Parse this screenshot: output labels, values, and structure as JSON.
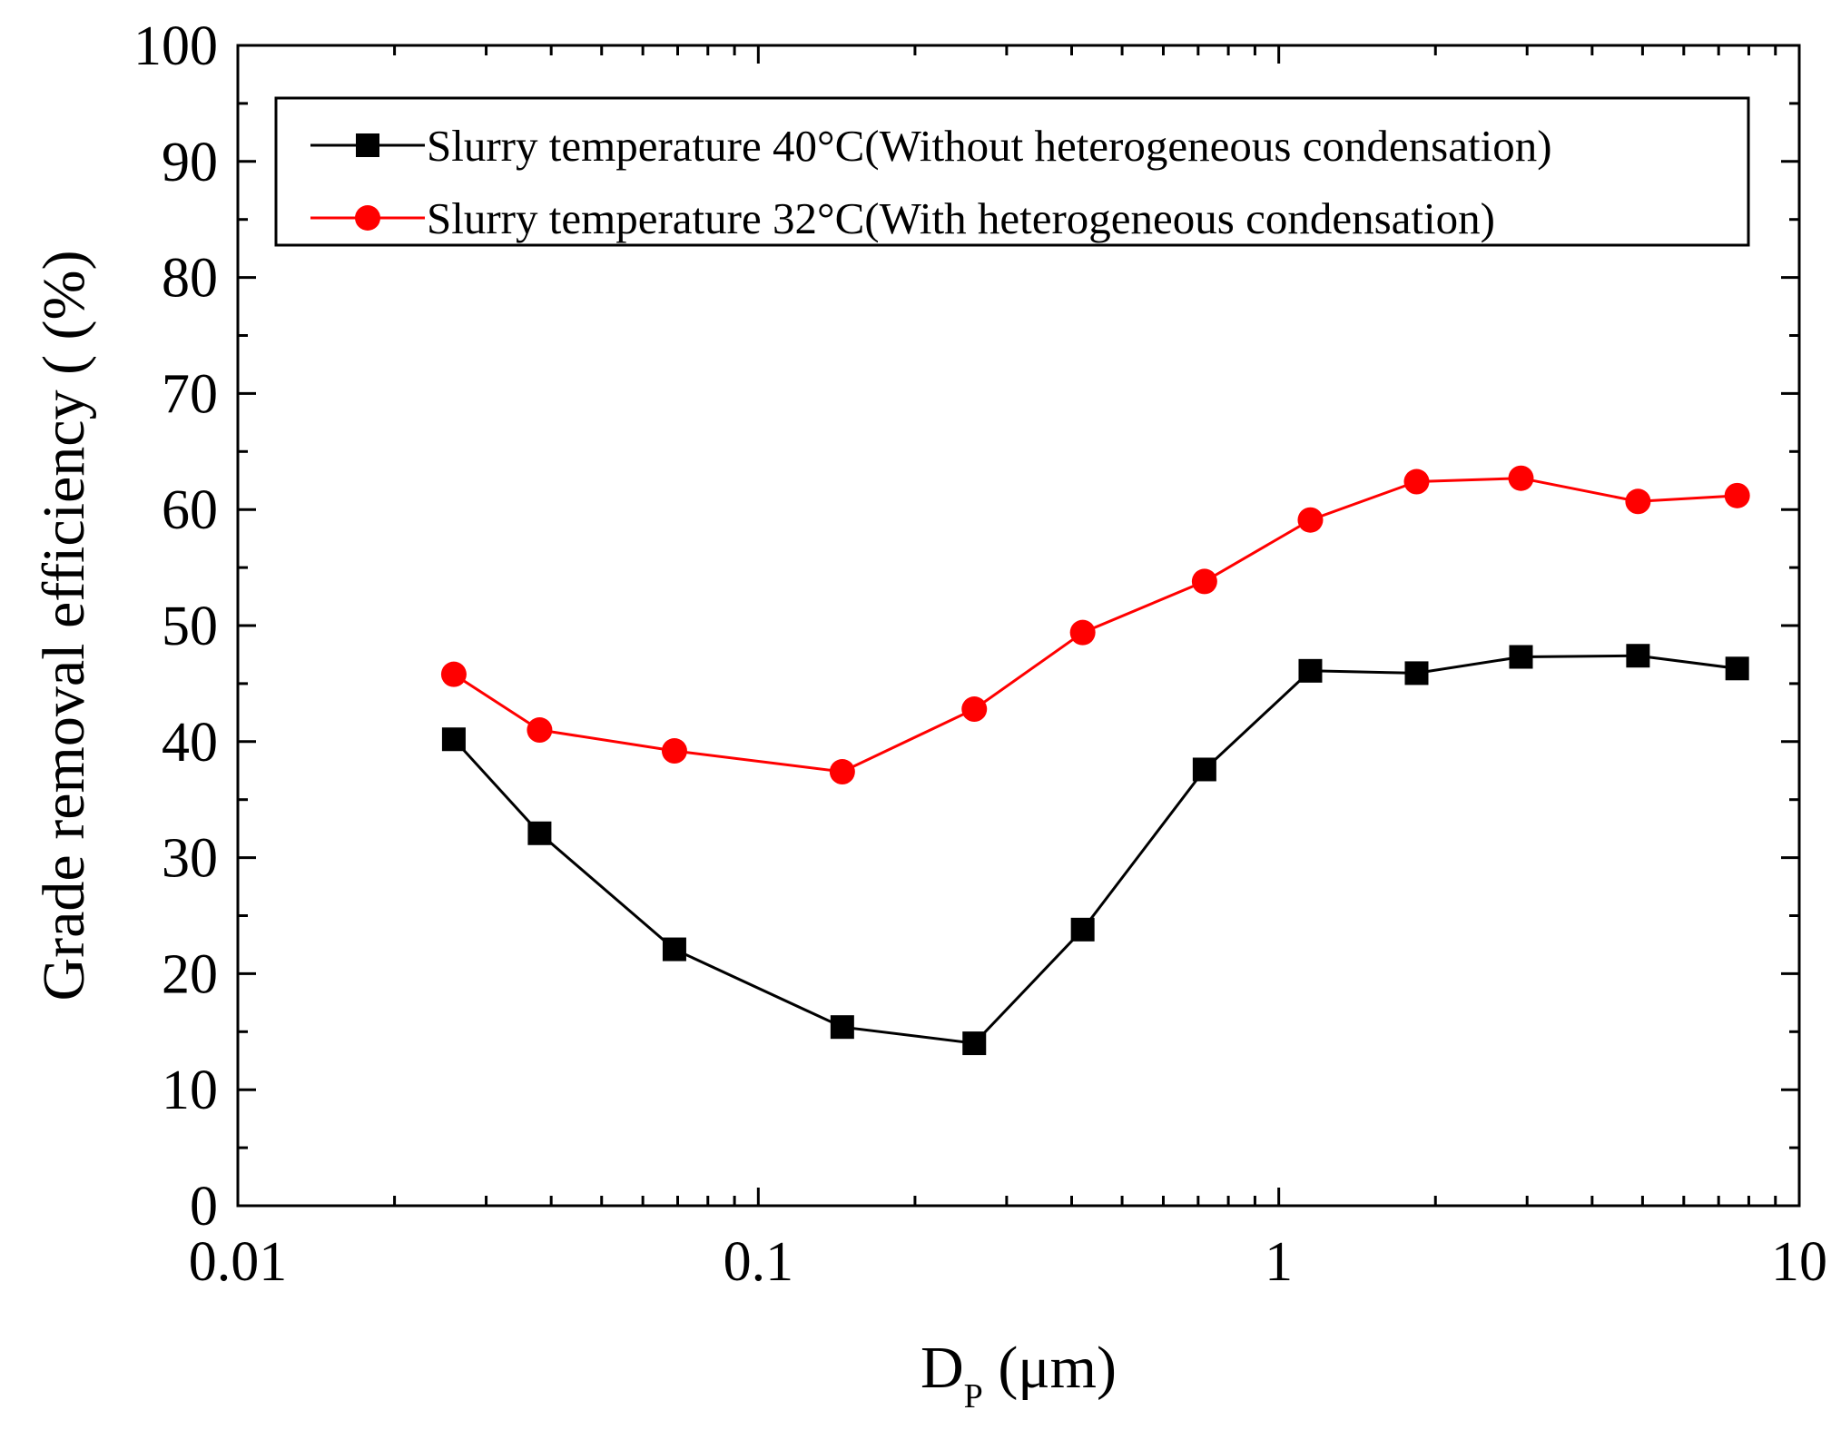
{
  "chart_data": {
    "type": "line",
    "title": "",
    "xlabel": "D",
    "xlabel_sub": "P",
    "xlabel_unit": " (μm)",
    "ylabel": "Grade removal efficiency ( (%)",
    "xscale": "log",
    "xlim": [
      0.01,
      10
    ],
    "ylim": [
      0,
      100
    ],
    "x_ticks": [
      0.01,
      0.1,
      1,
      10
    ],
    "x_tick_labels": [
      "0.01",
      "0.1",
      "1",
      "10"
    ],
    "y_ticks": [
      0,
      10,
      20,
      30,
      40,
      50,
      60,
      70,
      80,
      90,
      100
    ],
    "y_tick_labels": [
      "0",
      "10",
      "20",
      "30",
      "40",
      "50",
      "60",
      "70",
      "80",
      "90",
      "100"
    ],
    "grid": false,
    "legend_position": "top",
    "series": [
      {
        "name": "Slurry temperature 40°C(Without heterogeneous condensation)",
        "color": "#000000",
        "marker": "square",
        "x": [
          0.026,
          0.038,
          0.069,
          0.145,
          0.26,
          0.42,
          0.72,
          1.15,
          1.84,
          2.92,
          4.9,
          7.6
        ],
        "y": [
          40.2,
          32.1,
          22.1,
          15.4,
          14.0,
          23.8,
          37.6,
          46.1,
          45.9,
          47.3,
          47.4,
          46.3
        ]
      },
      {
        "name": "Slurry temperature 32°C(With heterogeneous condensation)",
        "color": "#ff0000",
        "marker": "circle",
        "x": [
          0.026,
          0.038,
          0.069,
          0.145,
          0.26,
          0.42,
          0.72,
          1.15,
          1.84,
          2.92,
          4.9,
          7.6
        ],
        "y": [
          45.8,
          41.0,
          39.2,
          37.4,
          42.8,
          49.4,
          53.8,
          59.1,
          62.4,
          62.7,
          60.7,
          61.2
        ]
      }
    ]
  }
}
